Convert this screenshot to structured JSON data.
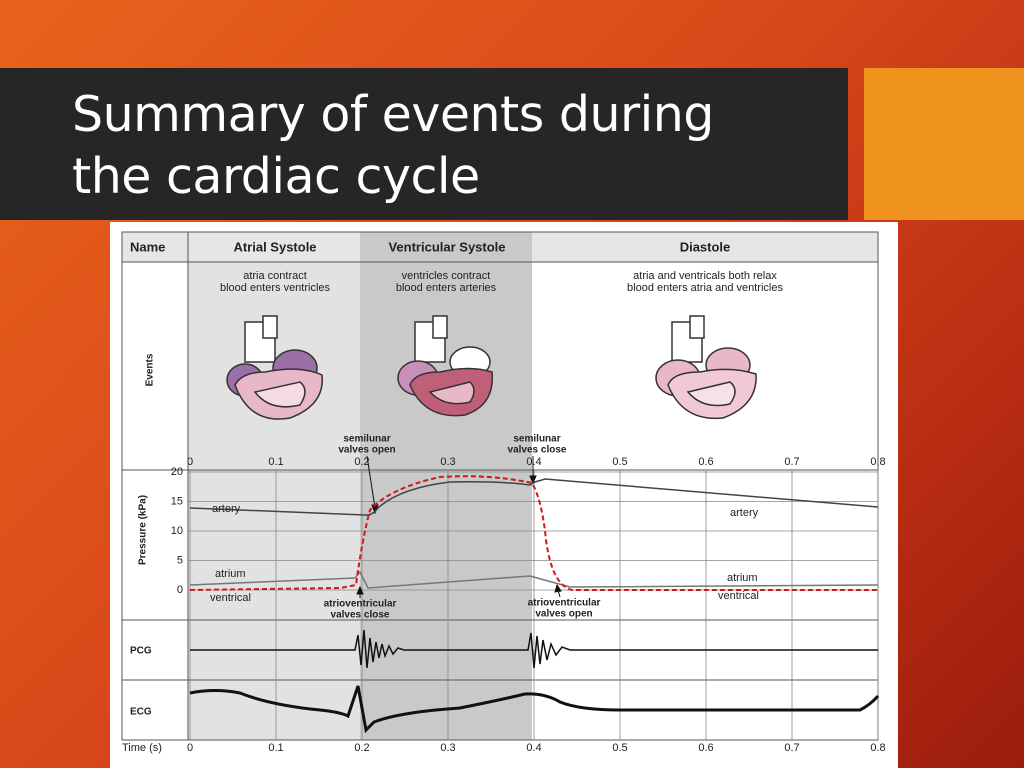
{
  "header": {
    "title": "Summary of events during the cardiac cycle"
  },
  "figure": {
    "name_label": "Name",
    "events_label": "Events",
    "phases": [
      {
        "name": "Atrial Systole",
        "events": [
          "atria contract",
          "blood enters ventricles"
        ]
      },
      {
        "name": "Ventricular Systole",
        "events": [
          "ventricles contract",
          "blood enters arteries"
        ]
      },
      {
        "name": "Diastole",
        "events": [
          "atria and ventricals both relax",
          "blood enters atria and ventricles"
        ]
      }
    ],
    "pressure_axis_label": "Pressure (kPa)",
    "pressure_ticks": [
      0,
      5,
      10,
      15,
      20
    ],
    "time_label": "Time (s)",
    "time_ticks": [
      0,
      0.1,
      0.2,
      0.3,
      0.4,
      0.5,
      0.6,
      0.7,
      0.8
    ],
    "annotations": {
      "semilunar_open": [
        "semilunar",
        "valves open"
      ],
      "semilunar_close": [
        "semilunar",
        "valves close"
      ],
      "av_close": [
        "atrioventricular",
        "valves close"
      ],
      "av_open": [
        "atrioventricular",
        "valves open"
      ]
    },
    "curve_labels": {
      "artery_left": "artery",
      "artery_right": "artery",
      "atrium_left": "atrium",
      "atrium_right": "atrium",
      "ventrical_left": "ventrical",
      "ventrical_right": "ventrical"
    },
    "row_labels": {
      "pcg": "PCG",
      "ecg": "ECG"
    }
  }
}
